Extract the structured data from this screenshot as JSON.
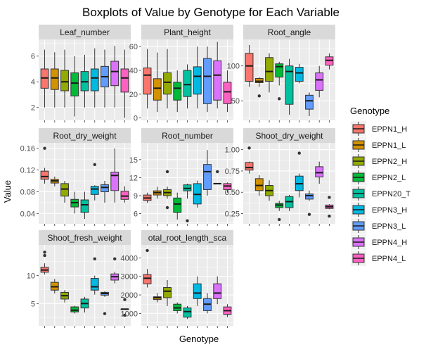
{
  "title": "Boxplots of Value by Genotype for Each Variable",
  "xlabel": "Genotype",
  "ylabel": "Value",
  "legend": {
    "title": "Genotype",
    "placement": "right",
    "items": [
      {
        "label": "EPPN1_H",
        "color": "#F8766D"
      },
      {
        "label": "EPPN1_L",
        "color": "#D39200"
      },
      {
        "label": "EPPN2_H",
        "color": "#93AA00"
      },
      {
        "label": "EPPN2_L",
        "color": "#00BA38"
      },
      {
        "label": "EPPN20_T",
        "color": "#00C19F"
      },
      {
        "label": "EPPN3_H",
        "color": "#00B9E3"
      },
      {
        "label": "EPPN3_L",
        "color": "#619CFF"
      },
      {
        "label": "EPPN4_H",
        "color": "#DB72FB"
      },
      {
        "label": "EPPN4_L",
        "color": "#FF61C3"
      }
    ]
  },
  "chart_data": [
    {
      "type": "boxplot",
      "facet": "Leaf_number",
      "ylim": [
        1,
        7.3
      ],
      "yticks": [
        "2",
        "4",
        "6"
      ],
      "ytick_values": [
        2,
        4,
        6
      ],
      "boxes": [
        {
          "genotype": "EPPN1_H",
          "min": 2.0,
          "q1": 3.5,
          "median": 4.3,
          "q3": 5.0,
          "max": 6.5,
          "outliers": []
        },
        {
          "genotype": "EPPN1_L",
          "min": 2.0,
          "q1": 3.4,
          "median": 4.3,
          "q3": 5.0,
          "max": 6.3,
          "outliers": []
        },
        {
          "genotype": "EPPN2_H",
          "min": 2.0,
          "q1": 3.3,
          "median": 4.0,
          "q3": 4.9,
          "max": 6.5,
          "outliers": []
        },
        {
          "genotype": "EPPN2_L",
          "min": 1.3,
          "q1": 2.9,
          "median": 3.9,
          "q3": 4.7,
          "max": 6.0,
          "outliers": []
        },
        {
          "genotype": "EPPN20_T",
          "min": 2.0,
          "q1": 3.3,
          "median": 4.0,
          "q3": 4.8,
          "max": 6.1,
          "outliers": []
        },
        {
          "genotype": "EPPN3_H",
          "min": 2.0,
          "q1": 3.3,
          "median": 4.3,
          "q3": 5.0,
          "max": 6.6,
          "outliers": []
        },
        {
          "genotype": "EPPN3_L",
          "min": 2.0,
          "q1": 3.6,
          "median": 4.4,
          "q3": 5.2,
          "max": 6.5,
          "outliers": []
        },
        {
          "genotype": "EPPN4_H",
          "min": 2.0,
          "q1": 3.7,
          "median": 4.8,
          "q3": 5.6,
          "max": 6.8,
          "outliers": []
        },
        {
          "genotype": "EPPN4_L",
          "min": 1.2,
          "q1": 3.2,
          "median": 4.3,
          "q3": 5.0,
          "max": 6.5,
          "outliers": []
        }
      ]
    },
    {
      "type": "boxplot",
      "facet": "Plant_height",
      "ylim": [
        -2,
        66
      ],
      "yticks": [
        "0",
        "20",
        "40",
        "60"
      ],
      "ytick_values": [
        0,
        20,
        40,
        60
      ],
      "boxes": [
        {
          "genotype": "EPPN1_H",
          "min": 8,
          "q1": 20,
          "median": 36,
          "q3": 42,
          "max": 58,
          "outliers": []
        },
        {
          "genotype": "EPPN1_L",
          "min": 5,
          "q1": 15,
          "median": 25,
          "q3": 33,
          "max": 55,
          "outliers": []
        },
        {
          "genotype": "EPPN2_H",
          "min": 8,
          "q1": 20,
          "median": 30,
          "q3": 38,
          "max": 58,
          "outliers": []
        },
        {
          "genotype": "EPPN2_L",
          "min": 5,
          "q1": 15,
          "median": 25,
          "q3": 30,
          "max": 40,
          "outliers": []
        },
        {
          "genotype": "EPPN20_T",
          "min": 8,
          "q1": 18,
          "median": 28,
          "q3": 40,
          "max": 45,
          "outliers": []
        },
        {
          "genotype": "EPPN3_H",
          "min": 8,
          "q1": 20,
          "median": 35,
          "q3": 43,
          "max": 60,
          "outliers": []
        },
        {
          "genotype": "EPPN3_L",
          "min": 5,
          "q1": 12,
          "median": 35,
          "q3": 50,
          "max": 60,
          "outliers": []
        },
        {
          "genotype": "EPPN4_H",
          "min": 8,
          "q1": 15,
          "median": 36,
          "q3": 48,
          "max": 64,
          "outliers": []
        },
        {
          "genotype": "EPPN4_L",
          "min": 5,
          "q1": 12,
          "median": 22,
          "q3": 30,
          "max": 40,
          "outliers": []
        }
      ]
    },
    {
      "type": "boxplot",
      "facet": "Root_angle",
      "ylim": [
        22,
        138
      ],
      "yticks": [
        "50",
        "100"
      ],
      "ytick_values": [
        50,
        100
      ],
      "boxes": [
        {
          "genotype": "EPPN1_H",
          "min": 70,
          "q1": 78,
          "median": 100,
          "q3": 118,
          "max": 130,
          "outliers": []
        },
        {
          "genotype": "EPPN1_L",
          "min": 70,
          "q1": 76,
          "median": 78,
          "q3": 82,
          "max": 84,
          "outliers": [
            57
          ]
        },
        {
          "genotype": "EPPN2_H",
          "min": 62,
          "q1": 78,
          "median": 92,
          "q3": 112,
          "max": 118,
          "outliers": []
        },
        {
          "genotype": "EPPN2_L",
          "min": 72,
          "q1": 84,
          "median": 99,
          "q3": 103,
          "max": 106,
          "outliers": [
            53
          ]
        },
        {
          "genotype": "EPPN20_T",
          "min": 30,
          "q1": 45,
          "median": 92,
          "q3": 100,
          "max": 110,
          "outliers": []
        },
        {
          "genotype": "EPPN3_H",
          "min": 75,
          "q1": 78,
          "median": 90,
          "q3": 98,
          "max": 103,
          "outliers": []
        },
        {
          "genotype": "EPPN3_L",
          "min": 28,
          "q1": 38,
          "median": 50,
          "q3": 58,
          "max": 62,
          "outliers": []
        },
        {
          "genotype": "EPPN4_H",
          "min": 55,
          "q1": 65,
          "median": 80,
          "q3": 90,
          "max": 100,
          "outliers": []
        },
        {
          "genotype": "EPPN4_L",
          "min": 95,
          "q1": 101,
          "median": 108,
          "q3": 113,
          "max": 118,
          "outliers": []
        }
      ]
    },
    {
      "type": "boxplot",
      "facet": "Root_dry_weight",
      "ylim": [
        0.021,
        0.17
      ],
      "yticks": [
        "0.04",
        "0.08",
        "0.12",
        "0.16"
      ],
      "ytick_values": [
        0.04,
        0.08,
        0.12,
        0.16
      ],
      "boxes": [
        {
          "genotype": "EPPN1_H",
          "min": 0.095,
          "q1": 0.103,
          "median": 0.108,
          "q3": 0.118,
          "max": 0.124,
          "outliers": [
            0.16
          ]
        },
        {
          "genotype": "EPPN1_L",
          "min": 0.09,
          "q1": 0.096,
          "median": 0.1,
          "q3": 0.103,
          "max": 0.108,
          "outliers": []
        },
        {
          "genotype": "EPPN2_H",
          "min": 0.06,
          "q1": 0.072,
          "median": 0.085,
          "q3": 0.095,
          "max": 0.1,
          "outliers": []
        },
        {
          "genotype": "EPPN2_L",
          "min": 0.04,
          "q1": 0.052,
          "median": 0.06,
          "q3": 0.066,
          "max": 0.08,
          "outliers": []
        },
        {
          "genotype": "EPPN20_T",
          "min": 0.03,
          "q1": 0.042,
          "median": 0.056,
          "q3": 0.065,
          "max": 0.08,
          "outliers": []
        },
        {
          "genotype": "EPPN3_H",
          "min": 0.064,
          "q1": 0.075,
          "median": 0.085,
          "q3": 0.09,
          "max": 0.092,
          "outliers": [
            0.13
          ]
        },
        {
          "genotype": "EPPN3_L",
          "min": 0.06,
          "q1": 0.08,
          "median": 0.088,
          "q3": 0.093,
          "max": 0.1,
          "outliers": []
        },
        {
          "genotype": "EPPN4_H",
          "min": 0.06,
          "q1": 0.082,
          "median": 0.11,
          "q3": 0.116,
          "max": 0.16,
          "outliers": []
        },
        {
          "genotype": "EPPN4_L",
          "min": 0.06,
          "q1": 0.066,
          "median": 0.072,
          "q3": 0.081,
          "max": 0.09,
          "outliers": []
        }
      ]
    },
    {
      "type": "boxplot",
      "facet": "Root_number",
      "ylim": [
        4.3,
        17.8
      ],
      "yticks": [
        "6",
        "9",
        "12",
        "15"
      ],
      "ytick_values": [
        6,
        9,
        12,
        15
      ],
      "boxes": [
        {
          "genotype": "EPPN1_H",
          "min": 7.8,
          "q1": 8.2,
          "median": 8.6,
          "q3": 9.1,
          "max": 9.5,
          "outliers": []
        },
        {
          "genotype": "EPPN1_L",
          "min": 8.5,
          "q1": 9.1,
          "median": 9.5,
          "q3": 9.8,
          "max": 10.5,
          "outliers": []
        },
        {
          "genotype": "EPPN2_H",
          "min": 8.5,
          "q1": 9.0,
          "median": 9.5,
          "q3": 10.0,
          "max": 10.5,
          "outliers": [
            7.0,
            13.0
          ]
        },
        {
          "genotype": "EPPN2_L",
          "min": 5.0,
          "q1": 6.2,
          "median": 7.6,
          "q3": 8.6,
          "max": 9.5,
          "outliers": []
        },
        {
          "genotype": "EPPN20_T",
          "min": 8.5,
          "q1": 9.8,
          "median": 10.2,
          "q3": 10.8,
          "max": 11.0,
          "outliers": [
            4.8
          ]
        },
        {
          "genotype": "EPPN3_H",
          "min": 7.0,
          "q1": 7.6,
          "median": 9.2,
          "q3": 11.0,
          "max": 11.5,
          "outliers": []
        },
        {
          "genotype": "EPPN3_L",
          "min": 9.0,
          "q1": 10.0,
          "median": 13.0,
          "q3": 14.2,
          "max": 16.6,
          "outliers": []
        },
        {
          "genotype": "EPPN4_H",
          "min": 11.0,
          "q1": 11.0,
          "median": 11.0,
          "q3": 11.0,
          "max": 11.0,
          "outliers": [
            13.0
          ]
        },
        {
          "genotype": "EPPN4_L",
          "min": 9.5,
          "q1": 10.0,
          "median": 10.6,
          "q3": 11.0,
          "max": 11.2,
          "outliers": []
        }
      ]
    },
    {
      "type": "boxplot",
      "facet": "Shoot_dry_weight",
      "ylim": [
        0.13,
        1.08
      ],
      "yticks": [
        "0.25",
        "0.50",
        "0.75",
        "1.00"
      ],
      "ytick_values": [
        0.25,
        0.5,
        0.75,
        1.0
      ],
      "boxes": [
        {
          "genotype": "EPPN1_H",
          "min": 0.72,
          "q1": 0.76,
          "median": 0.79,
          "q3": 0.85,
          "max": 0.86,
          "outliers": [
            1.02
          ]
        },
        {
          "genotype": "EPPN1_L",
          "min": 0.46,
          "q1": 0.52,
          "median": 0.58,
          "q3": 0.66,
          "max": 0.7,
          "outliers": []
        },
        {
          "genotype": "EPPN2_H",
          "min": 0.4,
          "q1": 0.46,
          "median": 0.52,
          "q3": 0.58,
          "max": 0.64,
          "outliers": []
        },
        {
          "genotype": "EPPN2_L",
          "min": 0.28,
          "q1": 0.32,
          "median": 0.35,
          "q3": 0.37,
          "max": 0.4,
          "outliers": [
            0.18
          ]
        },
        {
          "genotype": "EPPN20_T",
          "min": 0.28,
          "q1": 0.32,
          "median": 0.39,
          "q3": 0.45,
          "max": 0.47,
          "outliers": []
        },
        {
          "genotype": "EPPN3_H",
          "min": 0.44,
          "q1": 0.52,
          "median": 0.6,
          "q3": 0.69,
          "max": 0.72,
          "outliers": [
            0.96
          ]
        },
        {
          "genotype": "EPPN3_L",
          "min": 0.4,
          "q1": 0.42,
          "median": 0.46,
          "q3": 0.48,
          "max": 0.52,
          "outliers": [
            0.24
          ]
        },
        {
          "genotype": "EPPN4_H",
          "min": 0.6,
          "q1": 0.68,
          "median": 0.73,
          "q3": 0.8,
          "max": 0.86,
          "outliers": []
        },
        {
          "genotype": "EPPN4_L",
          "min": 0.3,
          "q1": 0.31,
          "median": 0.33,
          "q3": 0.35,
          "max": 0.36,
          "outliers": [
            0.44,
            0.22
          ]
        }
      ]
    },
    {
      "type": "boxplot",
      "facet": "Shoot_fresh_weight",
      "ylim": [
        1,
        15.5
      ],
      "yticks": [
        "5",
        "10"
      ],
      "ytick_values": [
        5,
        10
      ],
      "boxes": [
        {
          "genotype": "EPPN1_H",
          "min": 10.2,
          "q1": 10.6,
          "median": 11.0,
          "q3": 11.5,
          "max": 12.2,
          "outliers": [
            13.6,
            14.2
          ]
        },
        {
          "genotype": "EPPN1_L",
          "min": 6.8,
          "q1": 7.4,
          "median": 8.0,
          "q3": 8.8,
          "max": 9.4,
          "outliers": []
        },
        {
          "genotype": "EPPN2_H",
          "min": 5.2,
          "q1": 5.8,
          "median": 6.4,
          "q3": 7.0,
          "max": 7.4,
          "outliers": []
        },
        {
          "genotype": "EPPN2_L",
          "min": 3.2,
          "q1": 3.5,
          "median": 3.8,
          "q3": 4.4,
          "max": 4.6,
          "outliers": []
        },
        {
          "genotype": "EPPN20_T",
          "min": 3.4,
          "q1": 4.2,
          "median": 5.0,
          "q3": 5.8,
          "max": 6.2,
          "outliers": []
        },
        {
          "genotype": "EPPN3_H",
          "min": 6.6,
          "q1": 7.4,
          "median": 8.0,
          "q3": 9.5,
          "max": 10.0,
          "outliers": [
            13.0
          ]
        },
        {
          "genotype": "EPPN3_L",
          "min": 6.2,
          "q1": 6.5,
          "median": 6.8,
          "q3": 7.0,
          "max": 7.2,
          "outliers": [
            3.2
          ]
        },
        {
          "genotype": "EPPN4_H",
          "min": 8.6,
          "q1": 9.2,
          "median": 9.8,
          "q3": 10.3,
          "max": 10.7,
          "outliers": [
            13.0
          ]
        },
        {
          "genotype": "EPPN4_L",
          "min": 4.0,
          "q1": 4.0,
          "median": 4.0,
          "q3": 4.0,
          "max": 4.0,
          "outliers": [
            5.7,
            2.9
          ]
        }
      ]
    },
    {
      "type": "boxplot",
      "facet": "otal_root_length_sca",
      "ylim": [
        330,
        4700
      ],
      "yticks": [
        "1000",
        "2000",
        "3000",
        "4000"
      ],
      "ytick_values": [
        1000,
        2000,
        3000,
        4000
      ],
      "boxes": [
        {
          "genotype": "EPPN1_H",
          "min": 2400,
          "q1": 2600,
          "median": 2900,
          "q3": 3100,
          "max": 3400,
          "outliers": [
            4400
          ]
        },
        {
          "genotype": "EPPN1_L",
          "min": 1600,
          "q1": 1750,
          "median": 1850,
          "q3": 1900,
          "max": 2100,
          "outliers": []
        },
        {
          "genotype": "EPPN2_H",
          "min": 1400,
          "q1": 1850,
          "median": 2200,
          "q3": 2400,
          "max": 2800,
          "outliers": []
        },
        {
          "genotype": "EPPN2_L",
          "min": 1000,
          "q1": 1150,
          "median": 1300,
          "q3": 1500,
          "max": 1600,
          "outliers": []
        },
        {
          "genotype": "EPPN20_T",
          "min": 700,
          "q1": 800,
          "median": 1100,
          "q3": 1300,
          "max": 1400,
          "outliers": []
        },
        {
          "genotype": "EPPN3_H",
          "min": 1400,
          "q1": 1800,
          "median": 2100,
          "q3": 2600,
          "max": 3000,
          "outliers": []
        },
        {
          "genotype": "EPPN3_L",
          "min": 1000,
          "q1": 1150,
          "median": 1500,
          "q3": 1800,
          "max": 2100,
          "outliers": []
        },
        {
          "genotype": "EPPN4_H",
          "min": 1500,
          "q1": 1800,
          "median": 2100,
          "q3": 2600,
          "max": 3000,
          "outliers": []
        },
        {
          "genotype": "EPPN4_L",
          "min": 800,
          "q1": 950,
          "median": 1150,
          "q3": 1350,
          "max": 1500,
          "outliers": []
        }
      ]
    }
  ]
}
